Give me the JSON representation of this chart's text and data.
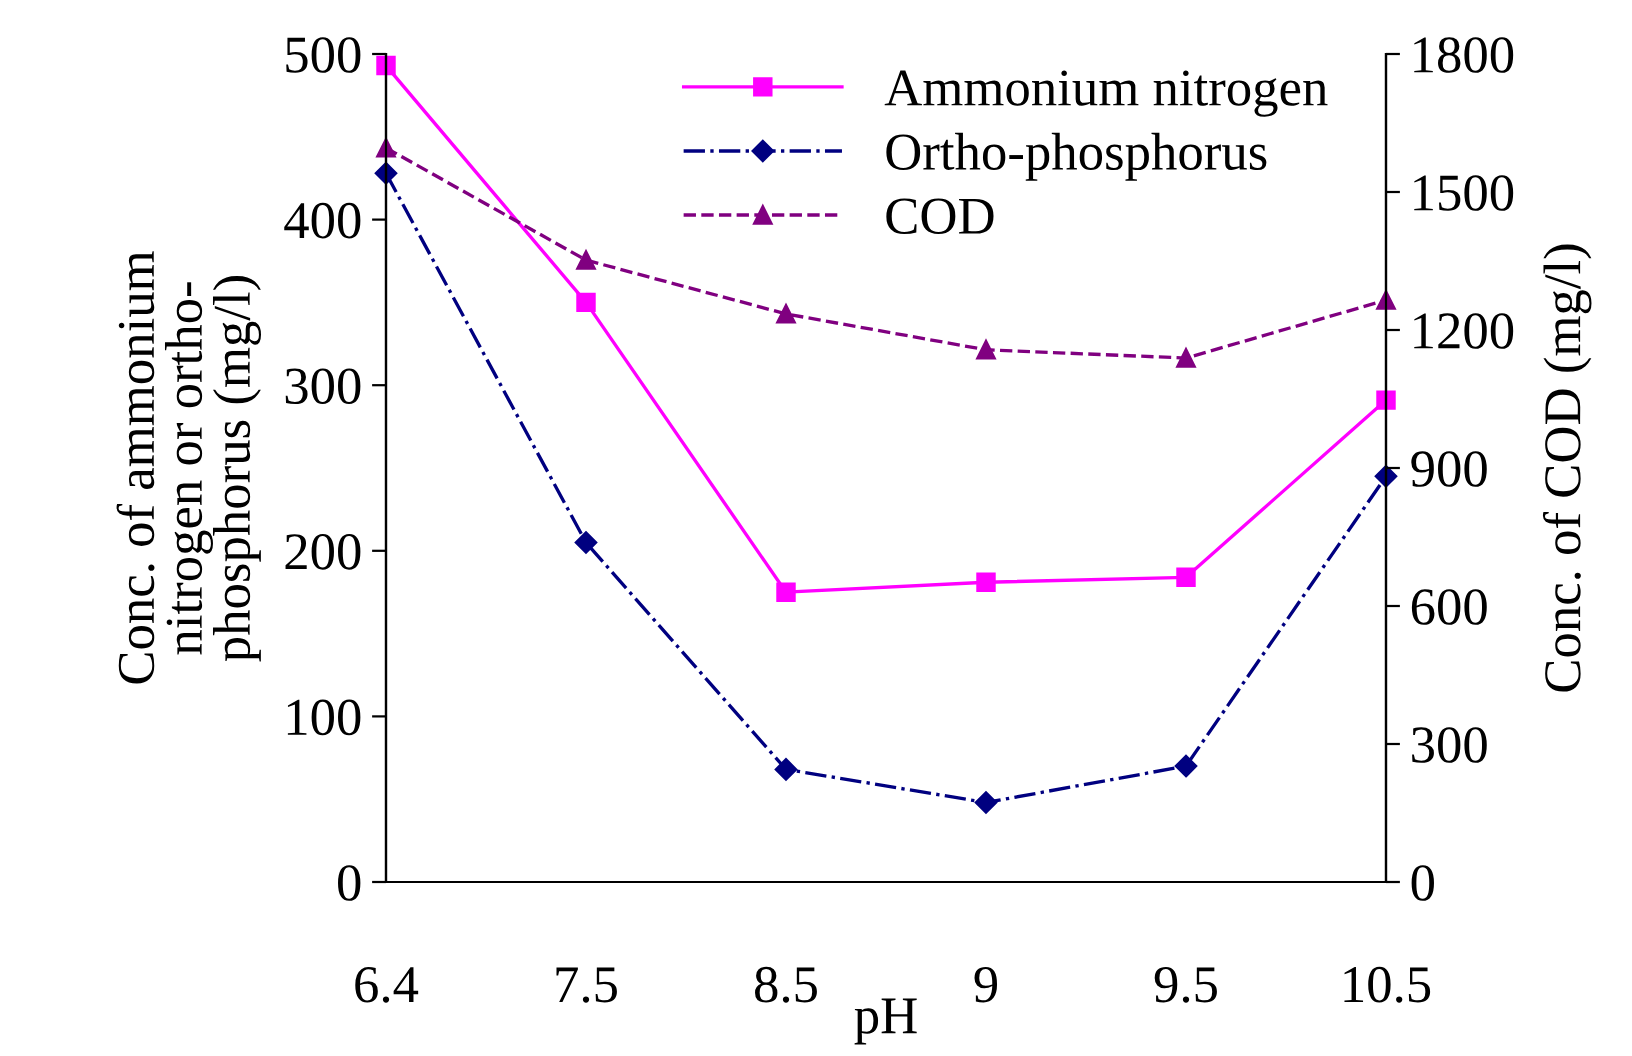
{
  "chart_data": {
    "type": "line",
    "xlabel": "pH",
    "ylabel": "Conc. of ammonium\nnitrogen or ortho-\nphosphorus (mg/l)",
    "y2label": "Conc. of COD (mg/l)",
    "categories": [
      "6.4",
      "7.5",
      "8.5",
      "9",
      "9.5",
      "10.5"
    ],
    "series": [
      {
        "name": "Ammonium nitrogen",
        "color": "#ff00ff",
        "marker": "square",
        "line_style": "solid",
        "values": [
          493,
          350,
          175,
          181,
          184,
          291
        ]
      },
      {
        "name": "Ortho-phosphorus",
        "color": "#000080",
        "marker": "diamond",
        "line_style": "dashdot",
        "values": [
          428,
          205,
          68,
          48,
          70,
          245
        ]
      },
      {
        "name": "COD",
        "color": "#800080",
        "marker": "triangle",
        "line_style": "dashed",
        "axis": "y2",
        "values": [
          1596,
          1352,
          1235,
          1157,
          1139,
          1265
        ]
      }
    ],
    "ylim": [
      0,
      500
    ],
    "yticks": [
      0,
      100,
      200,
      300,
      400,
      500
    ],
    "y2lim": [
      0,
      1800
    ],
    "y2ticks": [
      0,
      300,
      600,
      900,
      1200,
      1500,
      1800
    ],
    "grid": false,
    "legend": "top"
  }
}
